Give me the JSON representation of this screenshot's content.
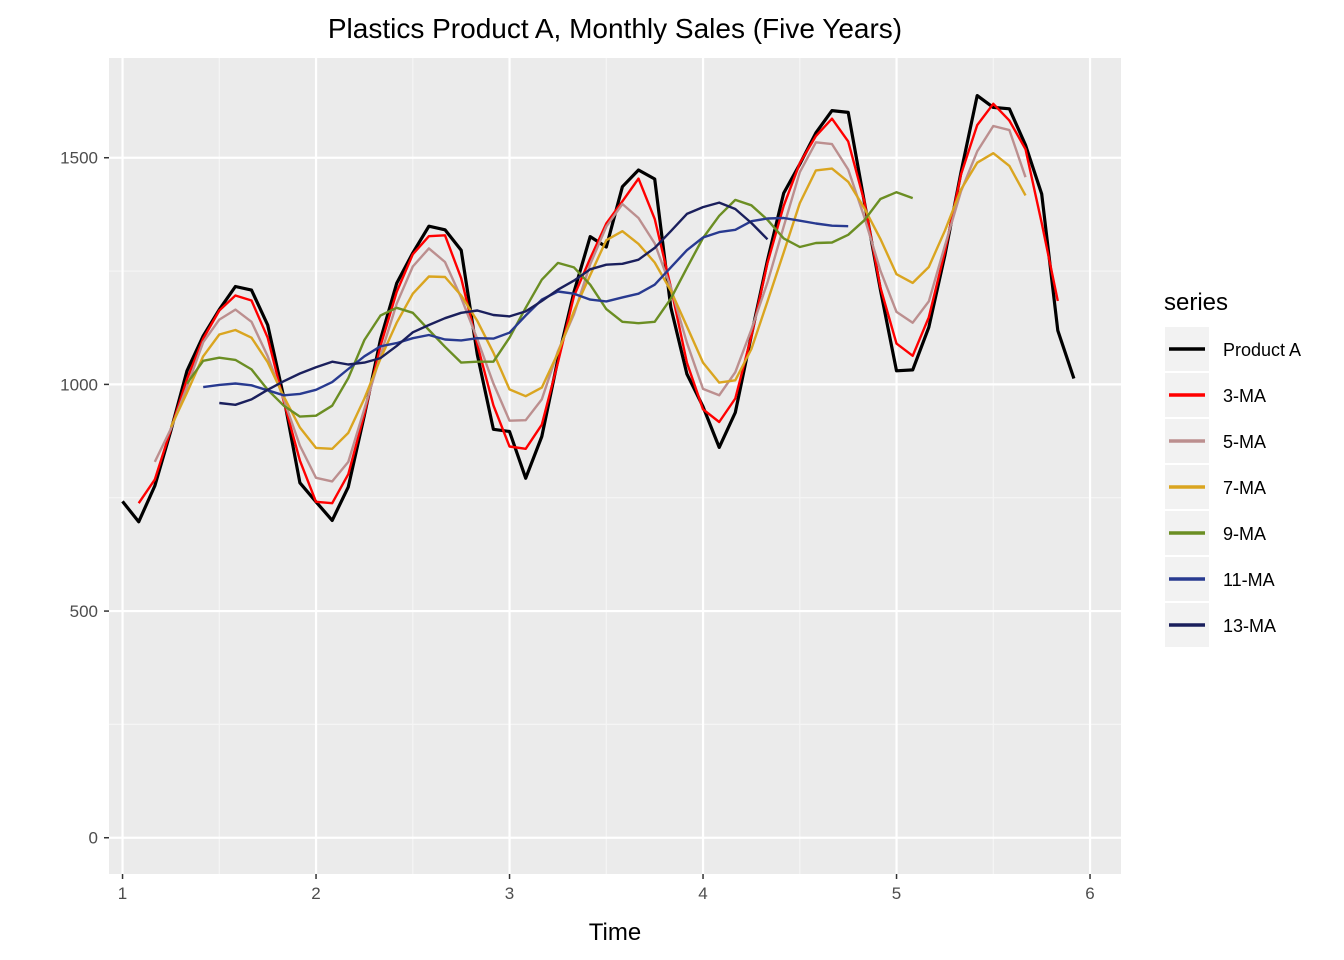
{
  "chart_data": {
    "type": "line",
    "title": "Plastics Product A, Monthly Sales (Five Years)",
    "xlabel": "Time",
    "ylabel": "",
    "xlim": [
      0.93,
      6.16
    ],
    "ylim": [
      -80,
      1720
    ],
    "x_ticks": [
      1,
      2,
      3,
      4,
      5,
      6
    ],
    "y_ticks": [
      0,
      500,
      1000,
      1500
    ],
    "grid": true,
    "legend": {
      "title": "series",
      "placement": "right"
    },
    "panel_background": "#ebebeb",
    "series": [
      {
        "name": "Product A",
        "color": "#000000",
        "start_index": 0,
        "values": [
          742,
          697,
          776,
          898,
          1030,
          1107,
          1165,
          1216,
          1208,
          1131,
          971,
          783,
          741,
          700,
          774,
          932,
          1099,
          1223,
          1290,
          1349,
          1341,
          1296,
          1066,
          901,
          896,
          793,
          885,
          1055,
          1204,
          1326,
          1303,
          1436,
          1473,
          1453,
          1170,
          1023,
          951,
          861,
          938,
          1109,
          1274,
          1422,
          1486,
          1555,
          1604,
          1600,
          1403,
          1209,
          1030,
          1032,
          1126,
          1285,
          1468,
          1637,
          1611,
          1608,
          1528,
          1420,
          1119,
          1013
        ]
      },
      {
        "name": "3-MA",
        "color": "#ff0000",
        "start_index": 1,
        "values": [
          738,
          790,
          901,
          1012,
          1101,
          1163,
          1196,
          1185,
          1103,
          962,
          832,
          741,
          738,
          802,
          935,
          1085,
          1204,
          1287,
          1327,
          1329,
          1234,
          1088,
          954,
          863,
          858,
          911,
          1048,
          1195,
          1278,
          1355,
          1404,
          1454,
          1365,
          1215,
          1048,
          945,
          917,
          969,
          1107,
          1268,
          1394,
          1488,
          1548,
          1586,
          1536,
          1404,
          1214,
          1090,
          1063,
          1148,
          1293,
          1463,
          1572,
          1619,
          1582,
          1519,
          1356,
          1184
        ]
      },
      {
        "name": "5-MA",
        "color": "#bc8f8f",
        "start_index": 2,
        "values": [
          829,
          902,
          995,
          1093,
          1143,
          1165,
          1138,
          1062,
          967,
          865,
          794,
          786,
          829,
          946,
          1064,
          1178,
          1260,
          1300,
          1270,
          1191,
          1100,
          1002,
          920,
          921,
          967,
          1073,
          1155,
          1265,
          1348,
          1398,
          1367,
          1311,
          1214,
          1092,
          990,
          976,
          1027,
          1121,
          1225,
          1348,
          1468,
          1534,
          1530,
          1474,
          1369,
          1251,
          1160,
          1136,
          1183,
          1306,
          1426,
          1514,
          1570,
          1561,
          1457
        ]
      },
      {
        "name": "7-MA",
        "color": "#daa520",
        "start_index": 3,
        "values": [
          906,
          982,
          1062,
          1110,
          1120,
          1103,
          1049,
          973,
          905,
          860,
          858,
          893,
          969,
          1057,
          1136,
          1200,
          1238,
          1237,
          1196,
          1140,
          1070,
          989,
          974,
          993,
          1069,
          1162,
          1241,
          1318,
          1338,
          1310,
          1269,
          1207,
          1128,
          1048,
          1004,
          1009,
          1078,
          1183,
          1291,
          1400,
          1472,
          1476,
          1447,
          1389,
          1321,
          1243,
          1224,
          1259,
          1339,
          1430,
          1489,
          1510,
          1482,
          1417
        ]
      },
      {
        "name": "9-MA",
        "color": "#6b8e23",
        "start_index": 4,
        "values": [
          1002,
          1052,
          1059,
          1054,
          1033,
          988,
          953,
          929,
          931,
          953,
          1014,
          1098,
          1152,
          1169,
          1158,
          1120,
          1083,
          1048,
          1050,
          1050,
          1103,
          1169,
          1231,
          1268,
          1258,
          1220,
          1166,
          1138,
          1135,
          1138,
          1189,
          1257,
          1323,
          1372,
          1407,
          1395,
          1363,
          1322,
          1303,
          1312,
          1313,
          1330,
          1362,
          1409,
          1424,
          1411
        ]
      },
      {
        "name": "11-MA",
        "color": "#283a90",
        "start_index": 5,
        "values": [
          994,
          999,
          1002,
          998,
          987,
          976,
          979,
          988,
          1005,
          1034,
          1062,
          1084,
          1091,
          1102,
          1109,
          1099,
          1097,
          1102,
          1101,
          1114,
          1152,
          1187,
          1205,
          1200,
          1187,
          1183,
          1192,
          1200,
          1220,
          1258,
          1296,
          1324,
          1336,
          1341,
          1360,
          1366,
          1367,
          1361,
          1355,
          1350,
          1349
        ]
      },
      {
        "name": "13-MA",
        "color": "#1a1f5c",
        "start_index": 6,
        "values": [
          959,
          955,
          967,
          988,
          1007,
          1024,
          1038,
          1050,
          1044,
          1048,
          1058,
          1085,
          1115,
          1131,
          1146,
          1158,
          1163,
          1153,
          1150,
          1161,
          1184,
          1209,
          1229,
          1254,
          1264,
          1266,
          1275,
          1301,
          1338,
          1376,
          1391,
          1401,
          1387,
          1356,
          1320
        ]
      }
    ]
  }
}
